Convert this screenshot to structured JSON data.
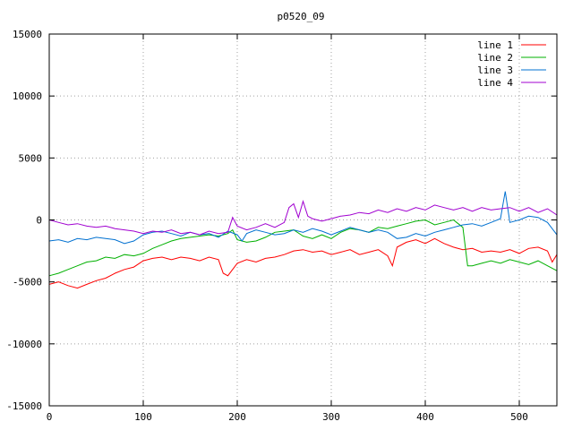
{
  "chart_data": {
    "type": "line",
    "title": "p0520_09",
    "xlabel": "",
    "ylabel": "",
    "xlim": [
      0,
      540
    ],
    "ylim": [
      -15000,
      15000
    ],
    "x_ticks": [
      0,
      100,
      200,
      300,
      400,
      500
    ],
    "y_ticks": [
      -15000,
      -10000,
      -5000,
      0,
      5000,
      10000,
      15000
    ],
    "grid": true,
    "legend_position": "top-right",
    "series": [
      {
        "name": "line 1",
        "color": "#ff0000",
        "points": [
          [
            0,
            -5200
          ],
          [
            10,
            -5000
          ],
          [
            20,
            -5300
          ],
          [
            30,
            -5500
          ],
          [
            40,
            -5200
          ],
          [
            50,
            -4900
          ],
          [
            60,
            -4700
          ],
          [
            70,
            -4300
          ],
          [
            80,
            -4000
          ],
          [
            90,
            -3800
          ],
          [
            100,
            -3300
          ],
          [
            110,
            -3100
          ],
          [
            120,
            -3000
          ],
          [
            130,
            -3200
          ],
          [
            140,
            -3000
          ],
          [
            150,
            -3100
          ],
          [
            160,
            -3300
          ],
          [
            170,
            -3000
          ],
          [
            180,
            -3200
          ],
          [
            185,
            -4300
          ],
          [
            190,
            -4500
          ],
          [
            200,
            -3500
          ],
          [
            210,
            -3200
          ],
          [
            220,
            -3400
          ],
          [
            230,
            -3100
          ],
          [
            240,
            -3000
          ],
          [
            250,
            -2800
          ],
          [
            260,
            -2500
          ],
          [
            270,
            -2400
          ],
          [
            280,
            -2600
          ],
          [
            290,
            -2500
          ],
          [
            300,
            -2800
          ],
          [
            310,
            -2600
          ],
          [
            320,
            -2400
          ],
          [
            330,
            -2800
          ],
          [
            340,
            -2600
          ],
          [
            350,
            -2400
          ],
          [
            360,
            -2900
          ],
          [
            365,
            -3700
          ],
          [
            370,
            -2200
          ],
          [
            380,
            -1800
          ],
          [
            390,
            -1600
          ],
          [
            400,
            -1900
          ],
          [
            410,
            -1500
          ],
          [
            420,
            -1900
          ],
          [
            430,
            -2200
          ],
          [
            440,
            -2400
          ],
          [
            450,
            -2300
          ],
          [
            460,
            -2600
          ],
          [
            470,
            -2500
          ],
          [
            480,
            -2600
          ],
          [
            490,
            -2400
          ],
          [
            500,
            -2700
          ],
          [
            510,
            -2300
          ],
          [
            520,
            -2200
          ],
          [
            530,
            -2500
          ],
          [
            535,
            -3400
          ],
          [
            540,
            -2800
          ]
        ]
      },
      {
        "name": "line 2",
        "color": "#00b000",
        "points": [
          [
            0,
            -4500
          ],
          [
            10,
            -4300
          ],
          [
            20,
            -4000
          ],
          [
            30,
            -3700
          ],
          [
            40,
            -3400
          ],
          [
            50,
            -3300
          ],
          [
            60,
            -3000
          ],
          [
            70,
            -3100
          ],
          [
            80,
            -2800
          ],
          [
            90,
            -2900
          ],
          [
            100,
            -2700
          ],
          [
            110,
            -2300
          ],
          [
            120,
            -2000
          ],
          [
            130,
            -1700
          ],
          [
            140,
            -1500
          ],
          [
            150,
            -1400
          ],
          [
            160,
            -1300
          ],
          [
            170,
            -1200
          ],
          [
            180,
            -1300
          ],
          [
            190,
            -1100
          ],
          [
            195,
            -800
          ],
          [
            200,
            -1600
          ],
          [
            210,
            -1800
          ],
          [
            220,
            -1700
          ],
          [
            230,
            -1400
          ],
          [
            240,
            -1000
          ],
          [
            250,
            -900
          ],
          [
            260,
            -800
          ],
          [
            270,
            -1300
          ],
          [
            280,
            -1500
          ],
          [
            290,
            -1200
          ],
          [
            300,
            -1500
          ],
          [
            310,
            -1000
          ],
          [
            320,
            -700
          ],
          [
            330,
            -800
          ],
          [
            340,
            -1000
          ],
          [
            350,
            -600
          ],
          [
            360,
            -700
          ],
          [
            370,
            -500
          ],
          [
            380,
            -300
          ],
          [
            390,
            -100
          ],
          [
            400,
            0
          ],
          [
            410,
            -400
          ],
          [
            420,
            -200
          ],
          [
            430,
            0
          ],
          [
            440,
            -600
          ],
          [
            445,
            -3700
          ],
          [
            450,
            -3700
          ],
          [
            460,
            -3500
          ],
          [
            470,
            -3300
          ],
          [
            480,
            -3500
          ],
          [
            490,
            -3200
          ],
          [
            500,
            -3400
          ],
          [
            510,
            -3600
          ],
          [
            520,
            -3300
          ],
          [
            530,
            -3700
          ],
          [
            540,
            -4100
          ]
        ]
      },
      {
        "name": "line 3",
        "color": "#0070d0",
        "points": [
          [
            0,
            -1700
          ],
          [
            10,
            -1600
          ],
          [
            20,
            -1800
          ],
          [
            30,
            -1500
          ],
          [
            40,
            -1600
          ],
          [
            50,
            -1400
          ],
          [
            60,
            -1500
          ],
          [
            70,
            -1600
          ],
          [
            80,
            -1900
          ],
          [
            90,
            -1700
          ],
          [
            100,
            -1200
          ],
          [
            110,
            -1000
          ],
          [
            120,
            -900
          ],
          [
            130,
            -1100
          ],
          [
            140,
            -1300
          ],
          [
            150,
            -1000
          ],
          [
            160,
            -1200
          ],
          [
            170,
            -1100
          ],
          [
            180,
            -1400
          ],
          [
            190,
            -900
          ],
          [
            200,
            -1200
          ],
          [
            205,
            -1700
          ],
          [
            210,
            -1100
          ],
          [
            220,
            -800
          ],
          [
            230,
            -1000
          ],
          [
            240,
            -1200
          ],
          [
            250,
            -1100
          ],
          [
            260,
            -800
          ],
          [
            270,
            -1000
          ],
          [
            280,
            -700
          ],
          [
            290,
            -900
          ],
          [
            300,
            -1200
          ],
          [
            310,
            -900
          ],
          [
            320,
            -600
          ],
          [
            330,
            -800
          ],
          [
            340,
            -1000
          ],
          [
            350,
            -800
          ],
          [
            360,
            -1000
          ],
          [
            370,
            -1500
          ],
          [
            380,
            -1400
          ],
          [
            390,
            -1100
          ],
          [
            400,
            -1300
          ],
          [
            410,
            -1000
          ],
          [
            420,
            -800
          ],
          [
            430,
            -600
          ],
          [
            440,
            -400
          ],
          [
            450,
            -300
          ],
          [
            460,
            -500
          ],
          [
            470,
            -200
          ],
          [
            480,
            100
          ],
          [
            485,
            2300
          ],
          [
            490,
            -200
          ],
          [
            500,
            0
          ],
          [
            510,
            300
          ],
          [
            520,
            200
          ],
          [
            530,
            -200
          ],
          [
            540,
            -1200
          ]
        ]
      },
      {
        "name": "line 4",
        "color": "#a000d0",
        "points": [
          [
            0,
            0
          ],
          [
            10,
            -200
          ],
          [
            20,
            -400
          ],
          [
            30,
            -300
          ],
          [
            40,
            -500
          ],
          [
            50,
            -600
          ],
          [
            60,
            -500
          ],
          [
            70,
            -700
          ],
          [
            80,
            -800
          ],
          [
            90,
            -900
          ],
          [
            100,
            -1100
          ],
          [
            110,
            -900
          ],
          [
            120,
            -1000
          ],
          [
            130,
            -800
          ],
          [
            140,
            -1100
          ],
          [
            150,
            -1000
          ],
          [
            160,
            -1200
          ],
          [
            170,
            -900
          ],
          [
            180,
            -1100
          ],
          [
            190,
            -1000
          ],
          [
            195,
            200
          ],
          [
            200,
            -500
          ],
          [
            210,
            -800
          ],
          [
            220,
            -600
          ],
          [
            230,
            -300
          ],
          [
            240,
            -600
          ],
          [
            250,
            -200
          ],
          [
            255,
            1000
          ],
          [
            260,
            1300
          ],
          [
            265,
            200
          ],
          [
            270,
            1500
          ],
          [
            275,
            300
          ],
          [
            280,
            100
          ],
          [
            290,
            -100
          ],
          [
            300,
            100
          ],
          [
            310,
            300
          ],
          [
            320,
            400
          ],
          [
            330,
            600
          ],
          [
            340,
            500
          ],
          [
            350,
            800
          ],
          [
            360,
            600
          ],
          [
            370,
            900
          ],
          [
            380,
            700
          ],
          [
            390,
            1000
          ],
          [
            400,
            800
          ],
          [
            410,
            1200
          ],
          [
            420,
            1000
          ],
          [
            430,
            800
          ],
          [
            440,
            1000
          ],
          [
            450,
            700
          ],
          [
            460,
            1000
          ],
          [
            470,
            800
          ],
          [
            480,
            900
          ],
          [
            490,
            1000
          ],
          [
            500,
            700
          ],
          [
            510,
            1000
          ],
          [
            520,
            600
          ],
          [
            530,
            900
          ],
          [
            540,
            400
          ]
        ]
      }
    ]
  }
}
